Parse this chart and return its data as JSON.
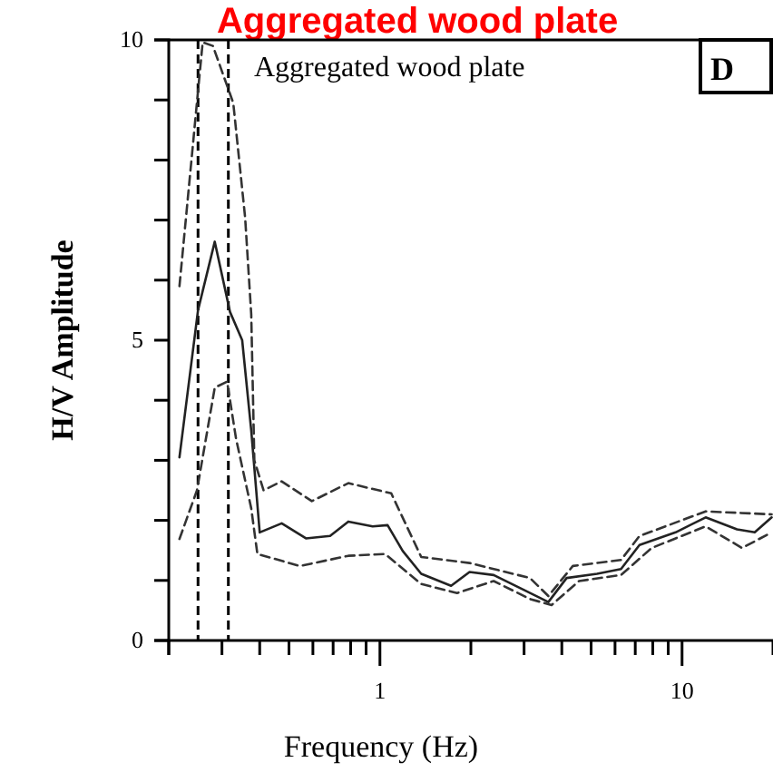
{
  "chart_data": {
    "type": "line",
    "title": "Aggregated wood plate",
    "xlabel": "Frequency (Hz)",
    "ylabel": "H/V Amplitude",
    "log": "x",
    "xlim": [
      0.2,
      20
    ],
    "xticks": [
      {
        "value": 0.2,
        "label": null
      },
      {
        "value": 0.3,
        "label": null
      },
      {
        "value": 0.4,
        "label": null
      },
      {
        "value": 0.5,
        "label": null
      },
      {
        "value": 0.6,
        "label": null
      },
      {
        "value": 0.7,
        "label": null
      },
      {
        "value": 0.8,
        "label": null
      },
      {
        "value": 0.9,
        "label": null
      },
      1,
      {
        "value": 2,
        "label": null
      },
      {
        "value": 3,
        "label": null
      },
      {
        "value": 4,
        "label": null
      },
      {
        "value": 5,
        "label": null
      },
      {
        "value": 6,
        "label": null
      },
      {
        "value": 7,
        "label": null
      },
      {
        "value": 8,
        "label": null
      },
      {
        "value": 9,
        "label": null
      },
      10
    ],
    "ylim": [
      0,
      10
    ],
    "yticks": [
      0,
      {
        "value": 1,
        "label": null
      },
      {
        "value": 2,
        "label": null
      },
      {
        "value": 3,
        "label": null
      },
      {
        "value": 4,
        "label": null
      },
      5,
      {
        "value": 6,
        "label": null
      },
      {
        "value": 7,
        "label": null
      },
      {
        "value": 8,
        "label": null
      },
      {
        "value": 9,
        "label": null
      },
      10
    ],
    "grid": false,
    "marker": "none",
    "annotations": [
      "Aggregated wood plate",
      "D"
    ],
    "ref_lines": [
      {
        "axis": "x",
        "value": 0.25,
        "label": null,
        "line_style": "dashed",
        "color": "#000000"
      },
      {
        "axis": "x",
        "value": 0.315,
        "label": null,
        "line_style": "dashed",
        "color": "#000000"
      }
    ],
    "series": [
      {
        "color": "#222222",
        "line_style": "solid",
        "x": [
          0.217,
          0.25,
          0.284,
          0.319,
          0.35,
          0.375,
          0.4,
          0.473,
          0.569,
          0.684,
          0.786,
          0.946,
          1.06,
          1.19,
          1.37,
          1.72,
          1.98,
          2.38,
          3.0,
          3.61,
          4.15,
          5.23,
          6.28,
          7.23,
          9.52,
          11.97,
          15.2,
          17.4,
          19.8
        ],
        "values": [
          3.05,
          5.5,
          6.64,
          5.47,
          5.0,
          3.5,
          1.8,
          1.95,
          1.7,
          1.74,
          1.98,
          1.9,
          1.92,
          1.49,
          1.11,
          0.91,
          1.14,
          1.09,
          0.84,
          0.64,
          1.04,
          1.11,
          1.19,
          1.59,
          1.8,
          2.05,
          1.85,
          1.8,
          2.05
        ]
      },
      {
        "color": "#333333",
        "line_style": "dashed",
        "x": [
          0.217,
          0.259,
          0.28,
          0.327,
          0.358,
          0.375,
          0.384,
          0.412,
          0.473,
          0.595,
          0.786,
          1.09,
          1.37,
          1.98,
          3.14,
          3.61,
          4.35,
          6.28,
          7.23,
          11.97,
          19.8
        ],
        "values": [
          5.9,
          9.96,
          9.9,
          8.95,
          7.04,
          5.43,
          3.0,
          2.5,
          2.65,
          2.32,
          2.62,
          2.45,
          1.39,
          1.29,
          1.04,
          0.74,
          1.24,
          1.34,
          1.74,
          2.15,
          2.1
        ]
      },
      {
        "color": "#333333",
        "line_style": "dashed",
        "x": [
          0.217,
          0.248,
          0.284,
          0.312,
          0.334,
          0.375,
          0.393,
          0.543,
          0.786,
          1.04,
          1.37,
          1.8,
          2.38,
          3.14,
          3.7,
          4.56,
          6.28,
          7.93,
          11.97,
          15.8,
          19.8
        ],
        "values": [
          1.69,
          2.5,
          4.21,
          4.31,
          3.36,
          2.2,
          1.44,
          1.24,
          1.41,
          1.44,
          0.94,
          0.79,
          0.99,
          0.69,
          0.59,
          0.99,
          1.09,
          1.54,
          1.9,
          1.54,
          1.8
        ]
      }
    ]
  }
}
